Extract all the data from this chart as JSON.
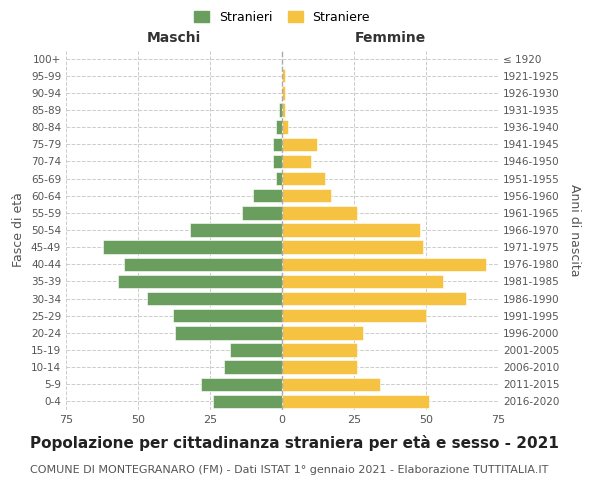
{
  "age_groups": [
    "0-4",
    "5-9",
    "10-14",
    "15-19",
    "20-24",
    "25-29",
    "30-34",
    "35-39",
    "40-44",
    "45-49",
    "50-54",
    "55-59",
    "60-64",
    "65-69",
    "70-74",
    "75-79",
    "80-84",
    "85-89",
    "90-94",
    "95-99",
    "100+"
  ],
  "birth_years": [
    "2016-2020",
    "2011-2015",
    "2006-2010",
    "2001-2005",
    "1996-2000",
    "1991-1995",
    "1986-1990",
    "1981-1985",
    "1976-1980",
    "1971-1975",
    "1966-1970",
    "1961-1965",
    "1956-1960",
    "1951-1955",
    "1946-1950",
    "1941-1945",
    "1936-1940",
    "1931-1935",
    "1926-1930",
    "1921-1925",
    "≤ 1920"
  ],
  "males": [
    24,
    28,
    20,
    18,
    37,
    38,
    47,
    57,
    55,
    62,
    32,
    14,
    10,
    2,
    3,
    3,
    2,
    1,
    0,
    0,
    0
  ],
  "females": [
    51,
    34,
    26,
    26,
    28,
    50,
    64,
    56,
    71,
    49,
    48,
    26,
    17,
    15,
    10,
    12,
    2,
    1,
    1,
    1,
    0
  ],
  "male_color": "#6a9e5f",
  "female_color": "#f5c242",
  "background_color": "#ffffff",
  "grid_color": "#cccccc",
  "title": "Popolazione per cittadinanza straniera per età e sesso - 2021",
  "subtitle": "COMUNE DI MONTEGRANARO (FM) - Dati ISTAT 1° gennaio 2021 - Elaborazione TUTTITALIA.IT",
  "left_label": "Maschi",
  "right_label": "Femmine",
  "ylabel_left": "Fasce di età",
  "ylabel_right": "Anni di nascita",
  "legend_male": "Stranieri",
  "legend_female": "Straniere",
  "xlim": 75,
  "title_fontsize": 11,
  "subtitle_fontsize": 8
}
